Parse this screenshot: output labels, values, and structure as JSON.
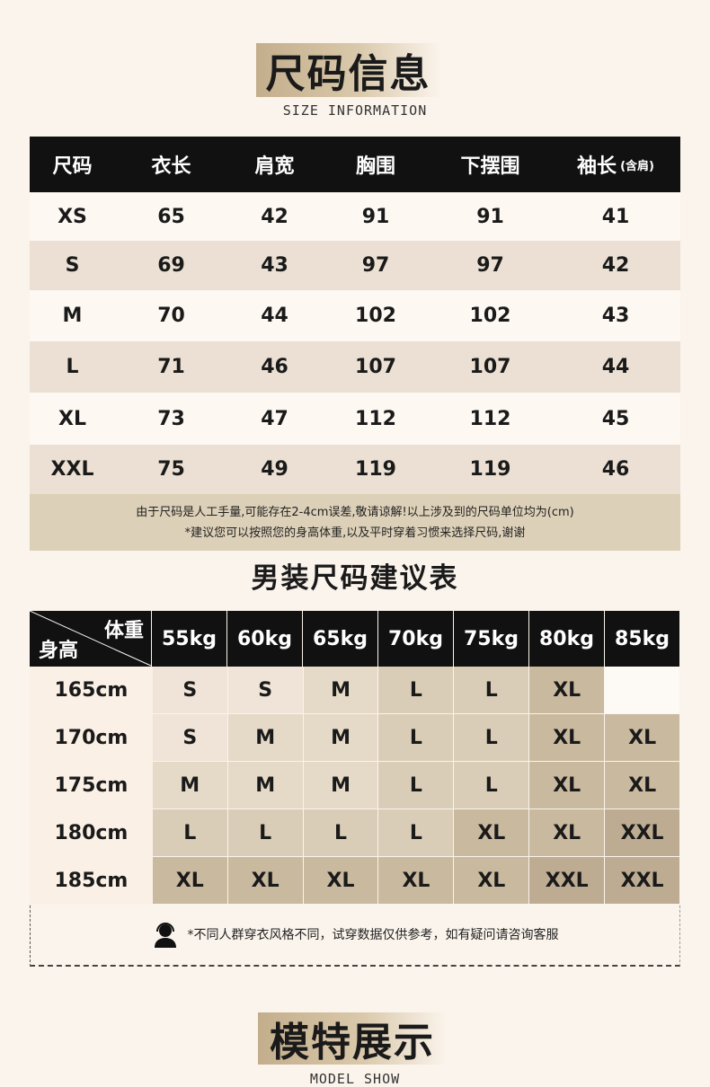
{
  "section1": {
    "title": "尺码信息",
    "subtitle": "SIZE INFORMATION"
  },
  "size_table": {
    "headers": [
      "尺码",
      "衣长",
      "肩宽",
      "胸围",
      "下摆围",
      "袖长"
    ],
    "header_suffix": "(含肩)",
    "rows": [
      [
        "XS",
        "65",
        "42",
        "91",
        "91",
        "41"
      ],
      [
        "S",
        "69",
        "43",
        "97",
        "97",
        "42"
      ],
      [
        "M",
        "70",
        "44",
        "102",
        "102",
        "43"
      ],
      [
        "L",
        "71",
        "46",
        "107",
        "107",
        "44"
      ],
      [
        "XL",
        "73",
        "47",
        "112",
        "112",
        "45"
      ],
      [
        "XXL",
        "75",
        "49",
        "119",
        "119",
        "46"
      ]
    ],
    "notes": [
      "由于尺码是人工手量,可能存在2-4cm误差,敬请谅解!以上涉及到的尺码单位均为(cm)",
      "*建议您可以按照您的身高体重,以及平时穿着习惯来选择尺码,谢谢"
    ]
  },
  "section2": {
    "title": "男装尺码建议表"
  },
  "recommend_table": {
    "corner_weight": "体重",
    "corner_height": "身高",
    "weights": [
      "55kg",
      "60kg",
      "65kg",
      "70kg",
      "75kg",
      "80kg",
      "85kg"
    ],
    "rows": [
      {
        "height": "165cm",
        "sizes": [
          "S",
          "S",
          "M",
          "L",
          "L",
          "XL",
          ""
        ]
      },
      {
        "height": "170cm",
        "sizes": [
          "S",
          "M",
          "M",
          "L",
          "L",
          "XL",
          "XL"
        ]
      },
      {
        "height": "175cm",
        "sizes": [
          "M",
          "M",
          "M",
          "L",
          "L",
          "XL",
          "XL"
        ]
      },
      {
        "height": "180cm",
        "sizes": [
          "L",
          "L",
          "L",
          "L",
          "XL",
          "XL",
          "XXL"
        ]
      },
      {
        "height": "185cm",
        "sizes": [
          "XL",
          "XL",
          "XL",
          "XL",
          "XL",
          "XXL",
          "XXL"
        ]
      }
    ],
    "note": "*不同人群穿衣风格不同，试穿数据仅供参考，如有疑问请咨询客服",
    "note_icon": "customer-service-icon",
    "size_colors": {
      "S": "#efe4d7",
      "M": "#e5d9c7",
      "L": "#dacdb7",
      "XL": "#c9b99f",
      "XXL": "#bdac91",
      "": "#fdf9f4"
    }
  },
  "section3": {
    "title": "模特展示",
    "subtitle": "MODEL SHOW"
  }
}
